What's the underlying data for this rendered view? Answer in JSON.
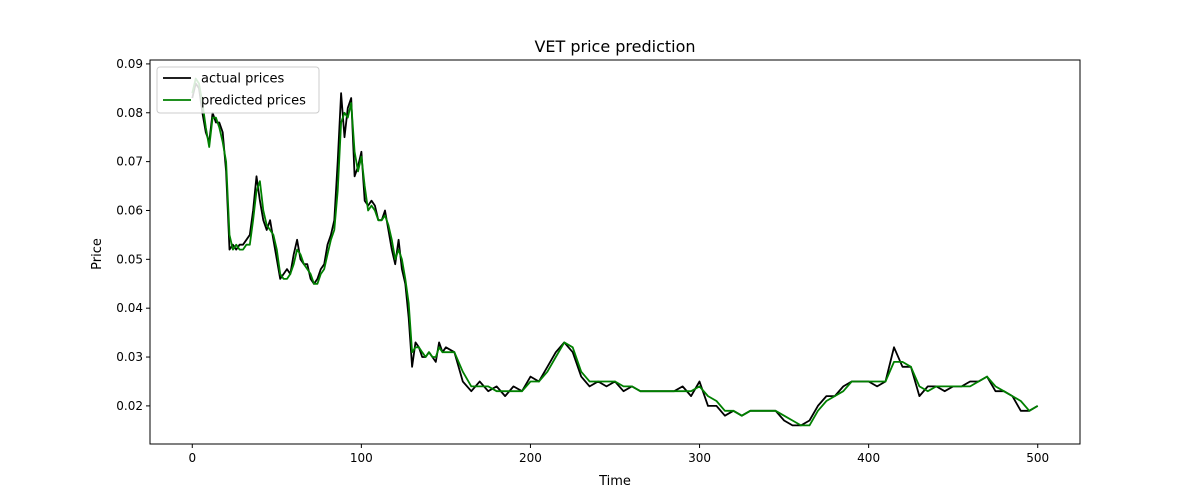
{
  "chart_data": {
    "type": "line",
    "title": "VET price prediction",
    "xlabel": "Time",
    "ylabel": "Price",
    "xlim": [
      -25,
      525
    ],
    "ylim": [
      0.0122,
      0.0908
    ],
    "x_ticks": [
      0,
      100,
      200,
      300,
      400,
      500
    ],
    "y_ticks": [
      0.02,
      0.03,
      0.04,
      0.05,
      0.06,
      0.07,
      0.08,
      0.09
    ],
    "x_tick_labels": [
      "0",
      "100",
      "200",
      "300",
      "400",
      "500"
    ],
    "y_tick_labels": [
      "0.02",
      "0.03",
      "0.04",
      "0.05",
      "0.06",
      "0.07",
      "0.08",
      "0.09"
    ],
    "grid": false,
    "legend_position": "upper-left",
    "series": [
      {
        "name": "actual prices",
        "color": "#000000",
        "x": [
          0,
          2,
          4,
          6,
          8,
          10,
          12,
          14,
          16,
          18,
          20,
          22,
          24,
          26,
          28,
          30,
          32,
          34,
          36,
          38,
          40,
          42,
          44,
          46,
          48,
          50,
          52,
          54,
          56,
          58,
          60,
          62,
          64,
          66,
          68,
          70,
          72,
          74,
          76,
          78,
          80,
          82,
          84,
          86,
          88,
          90,
          92,
          94,
          96,
          98,
          100,
          102,
          104,
          106,
          108,
          110,
          112,
          114,
          116,
          118,
          120,
          122,
          124,
          126,
          128,
          130,
          132,
          134,
          136,
          138,
          140,
          142,
          144,
          146,
          148,
          150,
          155,
          160,
          165,
          170,
          175,
          180,
          185,
          190,
          195,
          200,
          205,
          210,
          215,
          220,
          225,
          230,
          235,
          240,
          245,
          250,
          255,
          260,
          265,
          270,
          275,
          280,
          285,
          290,
          295,
          300,
          305,
          310,
          315,
          320,
          325,
          330,
          335,
          340,
          345,
          350,
          355,
          360,
          365,
          370,
          375,
          380,
          385,
          390,
          395,
          400,
          405,
          410,
          415,
          420,
          425,
          430,
          435,
          440,
          445,
          450,
          455,
          460,
          465,
          470,
          475,
          480,
          485,
          490,
          495,
          500
        ],
        "values": [
          0.083,
          0.086,
          0.085,
          0.08,
          0.076,
          0.074,
          0.08,
          0.078,
          0.078,
          0.076,
          0.068,
          0.052,
          0.053,
          0.052,
          0.053,
          0.053,
          0.054,
          0.055,
          0.06,
          0.067,
          0.062,
          0.058,
          0.056,
          0.058,
          0.054,
          0.05,
          0.046,
          0.047,
          0.048,
          0.047,
          0.051,
          0.054,
          0.05,
          0.049,
          0.049,
          0.046,
          0.045,
          0.046,
          0.048,
          0.049,
          0.053,
          0.055,
          0.058,
          0.07,
          0.084,
          0.075,
          0.081,
          0.083,
          0.067,
          0.069,
          0.072,
          0.062,
          0.061,
          0.062,
          0.061,
          0.058,
          0.058,
          0.06,
          0.056,
          0.052,
          0.049,
          0.054,
          0.048,
          0.045,
          0.038,
          0.028,
          0.033,
          0.032,
          0.03,
          0.03,
          0.031,
          0.03,
          0.029,
          0.033,
          0.031,
          0.032,
          0.031,
          0.025,
          0.023,
          0.025,
          0.023,
          0.024,
          0.022,
          0.024,
          0.023,
          0.026,
          0.025,
          0.028,
          0.031,
          0.033,
          0.031,
          0.026,
          0.024,
          0.025,
          0.024,
          0.025,
          0.023,
          0.024,
          0.023,
          0.023,
          0.023,
          0.023,
          0.023,
          0.024,
          0.022,
          0.025,
          0.02,
          0.02,
          0.018,
          0.019,
          0.018,
          0.019,
          0.019,
          0.019,
          0.019,
          0.017,
          0.016,
          0.016,
          0.017,
          0.02,
          0.022,
          0.022,
          0.024,
          0.025,
          0.025,
          0.025,
          0.024,
          0.025,
          0.032,
          0.028,
          0.028,
          0.022,
          0.024,
          0.024,
          0.023,
          0.024,
          0.024,
          0.025,
          0.025,
          0.026,
          0.023,
          0.023,
          0.022,
          0.019,
          0.019,
          0.02
        ]
      },
      {
        "name": "predicted prices",
        "color": "#008000",
        "x": [
          0,
          2,
          4,
          6,
          8,
          10,
          12,
          14,
          16,
          18,
          20,
          22,
          24,
          26,
          28,
          30,
          32,
          34,
          36,
          38,
          40,
          42,
          44,
          46,
          48,
          50,
          52,
          54,
          56,
          58,
          60,
          62,
          64,
          66,
          68,
          70,
          72,
          74,
          76,
          78,
          80,
          82,
          84,
          86,
          88,
          90,
          92,
          94,
          96,
          98,
          100,
          102,
          104,
          106,
          108,
          110,
          112,
          114,
          116,
          118,
          120,
          122,
          124,
          126,
          128,
          130,
          132,
          134,
          136,
          138,
          140,
          142,
          144,
          146,
          148,
          150,
          155,
          160,
          165,
          170,
          175,
          180,
          185,
          190,
          195,
          200,
          205,
          210,
          215,
          220,
          225,
          230,
          235,
          240,
          245,
          250,
          255,
          260,
          265,
          270,
          275,
          280,
          285,
          290,
          295,
          300,
          305,
          310,
          315,
          320,
          325,
          330,
          335,
          340,
          345,
          350,
          355,
          360,
          365,
          370,
          375,
          380,
          385,
          390,
          395,
          400,
          405,
          410,
          415,
          420,
          425,
          430,
          435,
          440,
          445,
          450,
          455,
          460,
          465,
          470,
          475,
          480,
          485,
          490,
          495,
          500
        ],
        "values": [
          0.084,
          0.087,
          0.086,
          0.082,
          0.077,
          0.073,
          0.079,
          0.079,
          0.077,
          0.074,
          0.07,
          0.055,
          0.052,
          0.053,
          0.052,
          0.052,
          0.053,
          0.053,
          0.058,
          0.064,
          0.066,
          0.06,
          0.057,
          0.056,
          0.055,
          0.052,
          0.047,
          0.046,
          0.046,
          0.047,
          0.049,
          0.052,
          0.051,
          0.049,
          0.048,
          0.047,
          0.045,
          0.045,
          0.047,
          0.048,
          0.051,
          0.054,
          0.056,
          0.064,
          0.078,
          0.08,
          0.079,
          0.082,
          0.072,
          0.068,
          0.071,
          0.065,
          0.06,
          0.061,
          0.06,
          0.058,
          0.058,
          0.059,
          0.057,
          0.054,
          0.05,
          0.052,
          0.05,
          0.046,
          0.041,
          0.031,
          0.032,
          0.032,
          0.031,
          0.03,
          0.031,
          0.03,
          0.03,
          0.032,
          0.031,
          0.031,
          0.031,
          0.027,
          0.024,
          0.024,
          0.024,
          0.023,
          0.023,
          0.023,
          0.023,
          0.025,
          0.025,
          0.027,
          0.03,
          0.033,
          0.032,
          0.027,
          0.025,
          0.025,
          0.025,
          0.025,
          0.024,
          0.024,
          0.023,
          0.023,
          0.023,
          0.023,
          0.023,
          0.023,
          0.023,
          0.024,
          0.022,
          0.021,
          0.019,
          0.019,
          0.018,
          0.019,
          0.019,
          0.019,
          0.019,
          0.018,
          0.017,
          0.016,
          0.016,
          0.019,
          0.021,
          0.022,
          0.023,
          0.025,
          0.025,
          0.025,
          0.025,
          0.025,
          0.029,
          0.029,
          0.028,
          0.024,
          0.023,
          0.024,
          0.024,
          0.024,
          0.024,
          0.024,
          0.025,
          0.026,
          0.024,
          0.023,
          0.022,
          0.021,
          0.019,
          0.02
        ]
      }
    ]
  }
}
